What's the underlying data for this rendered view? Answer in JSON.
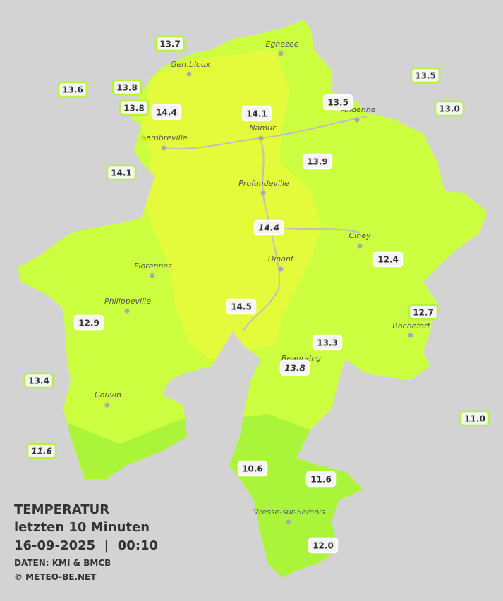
{
  "title": [
    "TEMPERATUR",
    "letzten 10 Minuten",
    "16-09-2025  |  00:10"
  ],
  "credits": [
    "DATEN: KMI & BMCB",
    "© METEO-BE.NET"
  ],
  "cities": [
    "Eghezee",
    "Gembloux",
    "Andenne",
    "Namur",
    "Sambreville",
    "Profondeville",
    "Ciney",
    "Florennes",
    "Dinant",
    "Philippeville",
    "Rochefort",
    "Beauraing",
    "Couvin",
    "Vresse-sur-Semois"
  ],
  "stations": [
    "13.7",
    "13.6",
    "13.8",
    "13.8",
    "14.4",
    "14.1",
    "13.5",
    "13.5",
    "13.0",
    "14.1",
    "13.9",
    "14.4",
    "12.4",
    "12.9",
    "14.5",
    "12.7",
    "13.3",
    "13.8",
    "13.4",
    "11.0",
    "11.6",
    "10.6",
    "11.6",
    "12.0"
  ]
}
